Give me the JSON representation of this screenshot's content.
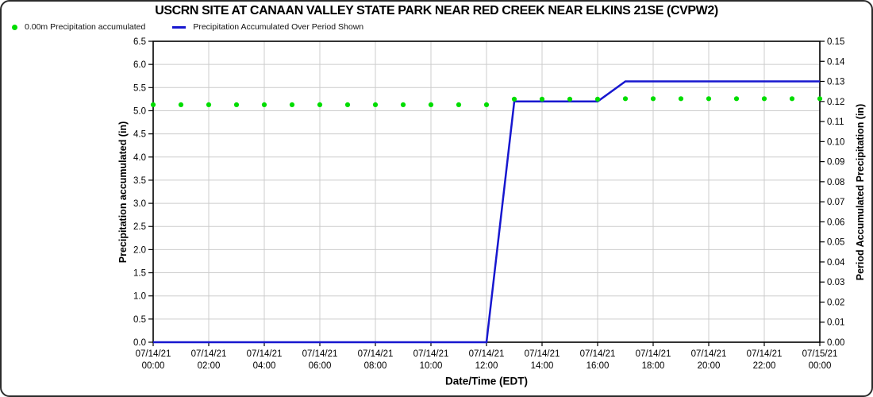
{
  "chart_data": {
    "type": "line",
    "title": "USCRN SITE AT CANAAN VALLEY STATE PARK NEAR RED CREEK NEAR ELKINS 21SE (CVPW2)",
    "xlabel": "Date/Time (EDT)",
    "grid": {
      "enabled": true,
      "color": "#cccccc"
    },
    "legend_position": "top-left",
    "axes": {
      "left": {
        "label": "Precipitation accumulated (in)",
        "min": 0.0,
        "max": 6.5,
        "step": 0.5,
        "decimals": 1
      },
      "right": {
        "label": "Period Accumulated Precipitation (in)",
        "min": 0.0,
        "max": 0.15,
        "step": 0.01,
        "decimals": 2
      },
      "x": {
        "min_hour": 0,
        "max_hour": 24,
        "tick_step_hours": 2,
        "ticks": [
          {
            "date": "07/14/21",
            "time": "00:00"
          },
          {
            "date": "07/14/21",
            "time": "02:00"
          },
          {
            "date": "07/14/21",
            "time": "04:00"
          },
          {
            "date": "07/14/21",
            "time": "06:00"
          },
          {
            "date": "07/14/21",
            "time": "08:00"
          },
          {
            "date": "07/14/21",
            "time": "10:00"
          },
          {
            "date": "07/14/21",
            "time": "12:00"
          },
          {
            "date": "07/14/21",
            "time": "14:00"
          },
          {
            "date": "07/14/21",
            "time": "16:00"
          },
          {
            "date": "07/14/21",
            "time": "18:00"
          },
          {
            "date": "07/14/21",
            "time": "20:00"
          },
          {
            "date": "07/14/21",
            "time": "22:00"
          },
          {
            "date": "07/15/21",
            "time": "00:00"
          }
        ]
      }
    },
    "series": [
      {
        "name": "0.00m Precipitation accumulated",
        "type": "scatter",
        "axis": "left",
        "color": "#00dd00",
        "marker": "dot",
        "x_hours_start": 0,
        "x_hours_step": 1,
        "values": [
          5.13,
          5.13,
          5.13,
          5.13,
          5.13,
          5.13,
          5.13,
          5.13,
          5.13,
          5.13,
          5.13,
          5.13,
          5.13,
          5.25,
          5.25,
          5.25,
          5.25,
          5.26,
          5.26,
          5.26,
          5.26,
          5.26,
          5.26,
          5.26,
          5.26
        ]
      },
      {
        "name": "Precipitation Accumulated Over Period Shown",
        "type": "line",
        "axis": "right",
        "color": "#1717cf",
        "points": [
          [
            0,
            0.0
          ],
          [
            12,
            0.0
          ],
          [
            13,
            0.12
          ],
          [
            16,
            0.12
          ],
          [
            17,
            0.13
          ],
          [
            24,
            0.13
          ]
        ]
      }
    ]
  }
}
